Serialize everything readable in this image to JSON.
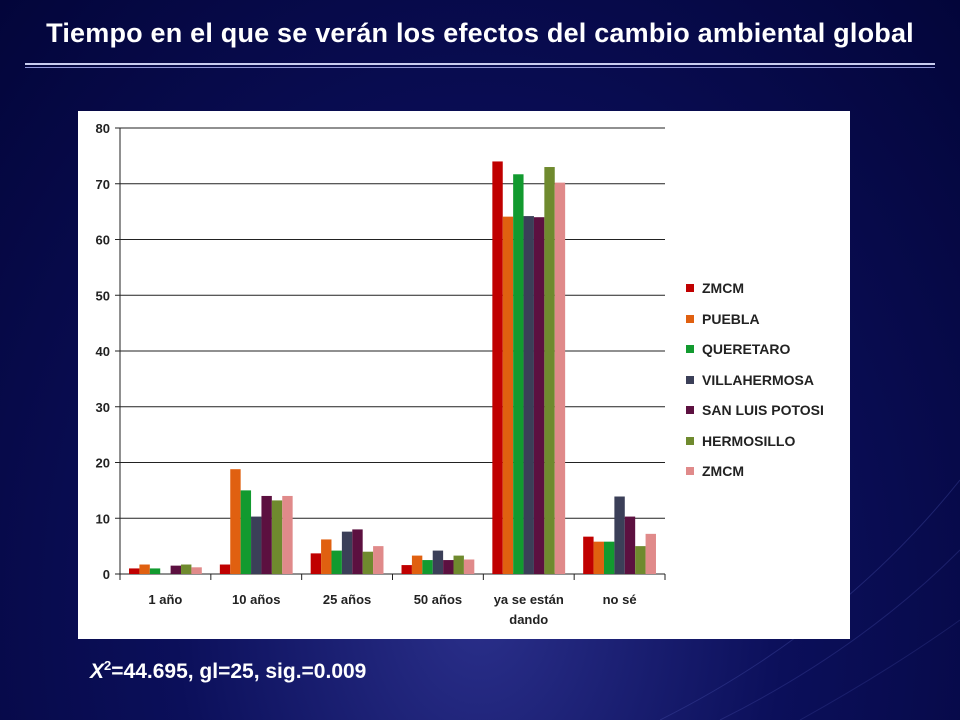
{
  "title": "Tiempo en el que se verán los efectos del cambio ambiental global",
  "stat": {
    "symbol": "X",
    "exponent": "2",
    "text": "=44.695, gl=25, sig.=0.009"
  },
  "chart_data": {
    "type": "bar",
    "categories": [
      "1 año",
      "10 años",
      "25 años",
      "50 años",
      "ya se están dando",
      "no sé"
    ],
    "category_lines": [
      [
        "1 año"
      ],
      [
        "10 años"
      ],
      [
        "25 años"
      ],
      [
        "50 años"
      ],
      [
        "ya se están",
        "dando"
      ],
      [
        "no sé"
      ]
    ],
    "ylim": [
      0,
      80
    ],
    "yticks": [
      0,
      10,
      20,
      30,
      40,
      50,
      60,
      70,
      80
    ],
    "grid": true,
    "legend": "right",
    "series": [
      {
        "name": "ZMCM",
        "color": "#c00000",
        "values": [
          1.0,
          1.7,
          3.7,
          1.6,
          74.0,
          6.7
        ]
      },
      {
        "name": "PUEBLA",
        "color": "#e06010",
        "values": [
          1.7,
          18.8,
          6.2,
          3.3,
          64.1,
          5.8
        ]
      },
      {
        "name": "QUERETARO",
        "color": "#129a2f",
        "values": [
          1.0,
          15.0,
          4.2,
          2.5,
          71.7,
          5.8
        ]
      },
      {
        "name": "VILLAHERMOSA",
        "color": "#3b3f58",
        "values": [
          0,
          10.3,
          7.6,
          4.2,
          64.2,
          13.9
        ]
      },
      {
        "name": "SAN LUIS POTOSI",
        "color": "#5c1040",
        "values": [
          1.5,
          14.0,
          8.0,
          2.5,
          64.0,
          10.3
        ]
      },
      {
        "name": "HERMOSILLO",
        "color": "#6f8a2e",
        "values": [
          1.7,
          13.2,
          4.0,
          3.3,
          73.0,
          5.0
        ]
      },
      {
        "name": "ZMCM",
        "color": "#e08a8a",
        "values": [
          1.2,
          14.0,
          5.0,
          2.6,
          70.2,
          7.2
        ]
      }
    ]
  }
}
